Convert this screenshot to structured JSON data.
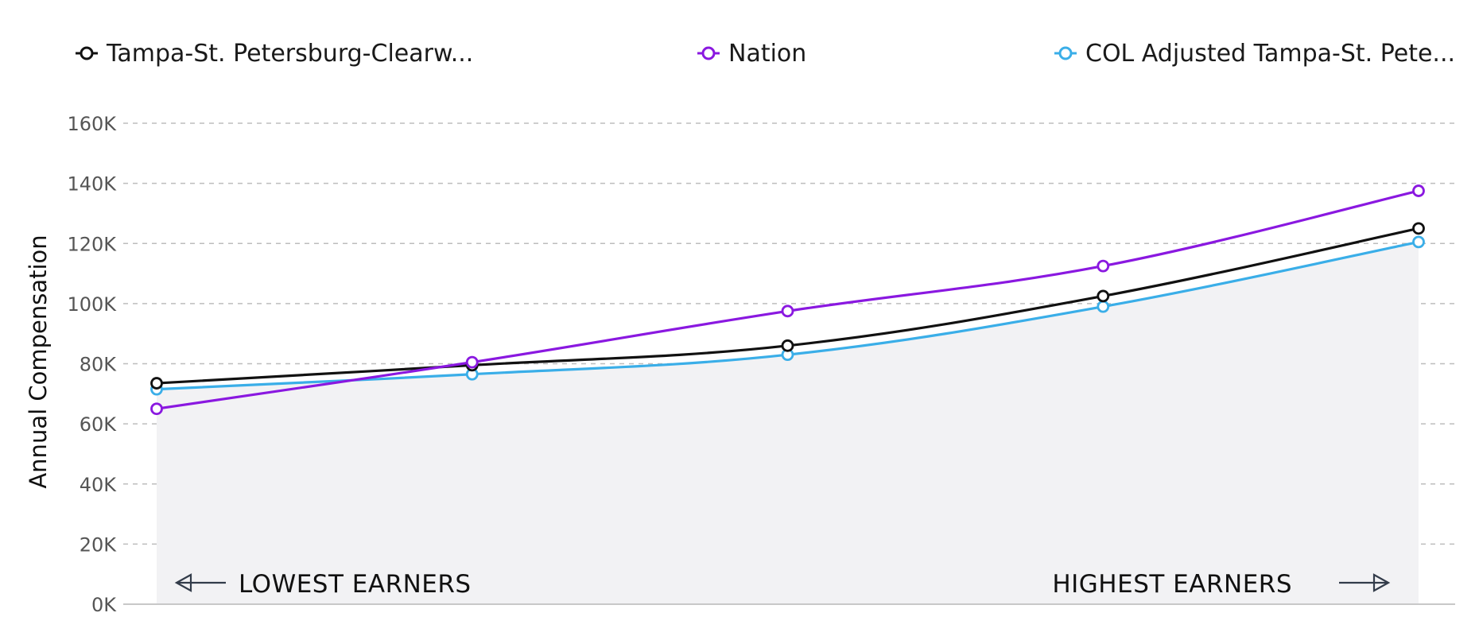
{
  "chart_data": {
    "type": "line",
    "title": "",
    "xlabel": "",
    "ylabel": "Annual Compensation",
    "ylim": [
      0,
      160000
    ],
    "y_ticks": [
      {
        "value": 0,
        "label": "0K"
      },
      {
        "value": 20000,
        "label": "20K"
      },
      {
        "value": 40000,
        "label": "40K"
      },
      {
        "value": 60000,
        "label": "60K"
      },
      {
        "value": 80000,
        "label": "80K"
      },
      {
        "value": 100000,
        "label": "100K"
      },
      {
        "value": 120000,
        "label": "120K"
      },
      {
        "value": 140000,
        "label": "140K"
      },
      {
        "value": 160000,
        "label": "160K"
      }
    ],
    "grid": true,
    "grid_style": "dashed",
    "legend_position": "top",
    "x_annotations": {
      "left": "LOWEST EARNERS",
      "right": "HIGHEST EARNERS"
    },
    "x": [
      1,
      2,
      3,
      4,
      5
    ],
    "series": [
      {
        "name": "Tampa-St. Petersburg-Clearw...",
        "color": "#111111",
        "values": [
          73500,
          79500,
          86000,
          102500,
          125000
        ]
      },
      {
        "name": "Nation",
        "color": "#8a18e0",
        "values": [
          65000,
          80500,
          97500,
          112500,
          137500
        ]
      },
      {
        "name": "COL Adjusted Tampa-St. Pete...",
        "color": "#3aaee8",
        "values": [
          71500,
          76500,
          83000,
          99000,
          120500
        ],
        "area_fill": "#f2f2f4"
      }
    ]
  }
}
